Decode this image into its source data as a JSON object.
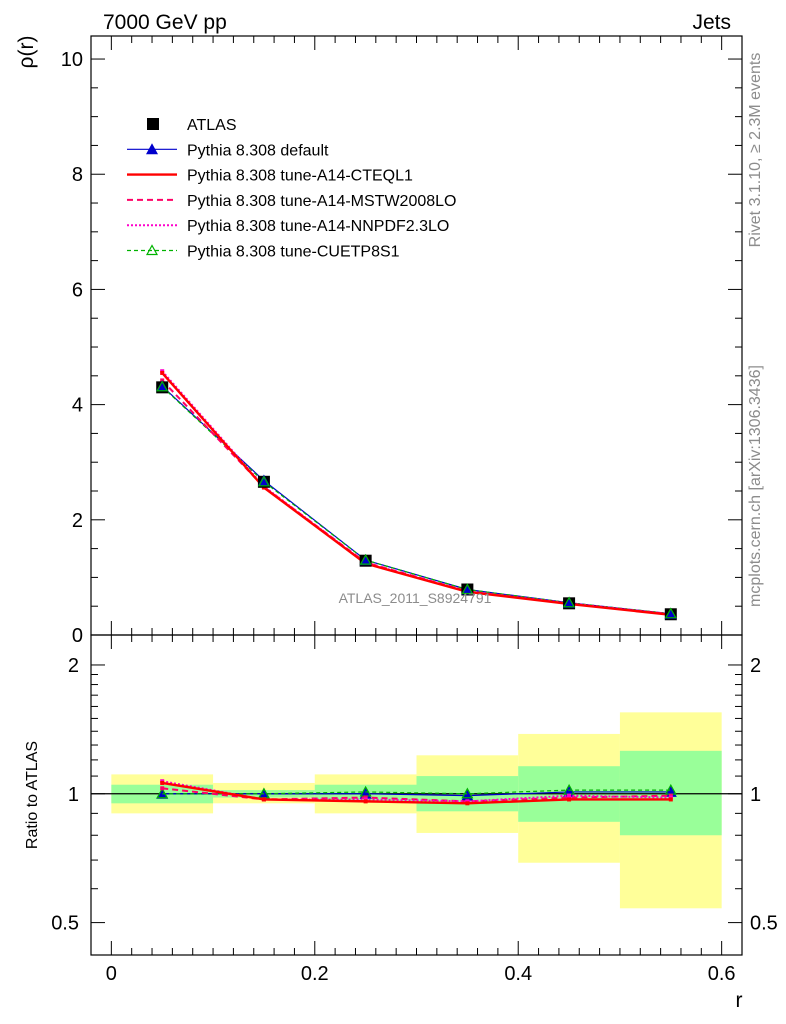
{
  "header": {
    "left": "7000 GeV pp",
    "right": "Jets"
  },
  "side_labels": {
    "rivet": "Rivet 3.1.10, ≥ 2.3M events",
    "mcplots": "mcplots.cern.ch [arXiv:1306.3436]"
  },
  "watermark": "ATLAS_2011_S8924791",
  "colors": {
    "atlas": "#000000",
    "default": "#0000cc",
    "cteql1": "#ff0000",
    "mstw": "#ff0066",
    "nnpdf": "#ff00cc",
    "cuetp": "#00b300",
    "band_inner": "#99ff99",
    "band_outer": "#ffff99"
  },
  "chart_data": [
    {
      "type": "line",
      "panel": "main",
      "ylabel": "ρ(r)",
      "xlabel": "r",
      "xlim": [
        -0.02,
        0.62
      ],
      "ylim": [
        0,
        10.4
      ],
      "yticks": [
        0,
        2,
        4,
        6,
        8,
        10
      ],
      "legend_position": "top-left",
      "x": [
        0.05,
        0.15,
        0.25,
        0.35,
        0.45,
        0.55
      ],
      "bin_edges": [
        0.0,
        0.1,
        0.2,
        0.3,
        0.4,
        0.5,
        0.6
      ],
      "series": [
        {
          "name": "ATLAS",
          "key": "atlas",
          "style": "marker-square",
          "values": [
            4.3,
            2.66,
            1.29,
            0.79,
            0.55,
            0.36
          ]
        },
        {
          "name": "Pythia 8.308 default",
          "key": "default",
          "style": "solid-triangle",
          "values": [
            4.32,
            2.68,
            1.3,
            0.79,
            0.56,
            0.37
          ]
        },
        {
          "name": "Pythia 8.308 tune-A14-CTEQL1",
          "key": "cteql1",
          "style": "solid-thick",
          "values": [
            4.55,
            2.56,
            1.24,
            0.75,
            0.54,
            0.35
          ]
        },
        {
          "name": "Pythia 8.308 tune-A14-MSTW2008LO",
          "key": "mstw",
          "style": "dashed",
          "values": [
            4.42,
            2.57,
            1.26,
            0.76,
            0.54,
            0.36
          ]
        },
        {
          "name": "Pythia 8.308 tune-A14-NNPDF2.3LO",
          "key": "nnpdf",
          "style": "dotted",
          "values": [
            4.58,
            2.58,
            1.25,
            0.76,
            0.55,
            0.36
          ]
        },
        {
          "name": "Pythia 8.308 tune-CUETP8S1",
          "key": "cuetp",
          "style": "dashed-open-triangle",
          "values": [
            4.31,
            2.66,
            1.3,
            0.79,
            0.56,
            0.37
          ]
        }
      ]
    },
    {
      "type": "line",
      "panel": "ratio",
      "ylabel": "Ratio to ATLAS",
      "xlabel": "r",
      "ylim": [
        0.42,
        2.35
      ],
      "yscale": "log",
      "yticks": [
        0.5,
        1,
        2
      ],
      "xticks": [
        0,
        0.2,
        0.4,
        0.6
      ],
      "bands": {
        "inner": [
          [
            0.95,
            1.05
          ],
          [
            0.98,
            1.02
          ],
          [
            0.96,
            1.05
          ],
          [
            0.91,
            1.1
          ],
          [
            0.86,
            1.16
          ],
          [
            0.8,
            1.26
          ]
        ],
        "outer": [
          [
            0.9,
            1.11
          ],
          [
            0.95,
            1.06
          ],
          [
            0.9,
            1.11
          ],
          [
            0.81,
            1.23
          ],
          [
            0.69,
            1.38
          ],
          [
            0.54,
            1.55
          ]
        ]
      },
      "series": [
        {
          "name": "Pythia 8.308 default",
          "key": "default",
          "values": [
            1.0,
            1.0,
            1.0,
            0.99,
            1.01,
            1.01
          ]
        },
        {
          "name": "Pythia 8.308 tune-A14-CTEQL1",
          "key": "cteql1",
          "values": [
            1.06,
            0.97,
            0.96,
            0.95,
            0.97,
            0.97
          ]
        },
        {
          "name": "Pythia 8.308 tune-A14-MSTW2008LO",
          "key": "mstw",
          "values": [
            1.03,
            0.97,
            0.98,
            0.96,
            0.98,
            0.99
          ]
        },
        {
          "name": "Pythia 8.308 tune-A14-NNPDF2.3LO",
          "key": "nnpdf",
          "values": [
            1.07,
            0.97,
            0.97,
            0.96,
            0.99,
            0.98
          ]
        },
        {
          "name": "Pythia 8.308 tune-CUETP8S1",
          "key": "cuetp",
          "values": [
            1.0,
            1.0,
            1.01,
            1.0,
            1.02,
            1.02
          ]
        }
      ]
    }
  ]
}
